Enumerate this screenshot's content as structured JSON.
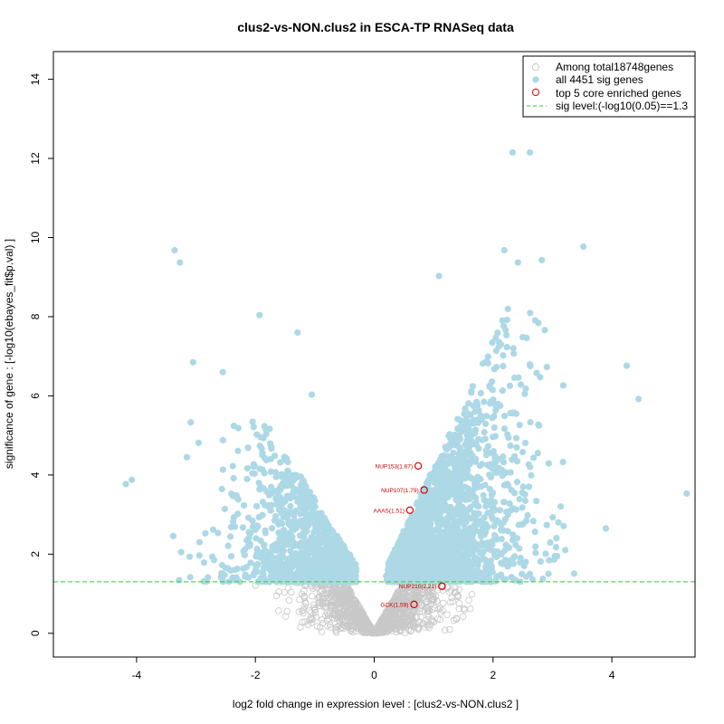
{
  "chart_data": {
    "type": "scatter",
    "title": "clus2-vs-NON.clus2 in ESCA-TP RNASeq data",
    "xlabel": "log2 fold change in expression level : [clus2-vs-NON.clus2 ]",
    "ylabel": "significance of gene : [-log10(ebayes_fit$p.val) ]",
    "xlim": [
      -5.4,
      5.4
    ],
    "ylim": [
      -0.6,
      14.7
    ],
    "x_ticks": [
      -4,
      -2,
      0,
      2,
      4
    ],
    "y_ticks": [
      0,
      2,
      4,
      6,
      8,
      10,
      12,
      14
    ],
    "grid": false,
    "legend_position": "top-right",
    "legend": [
      {
        "label": "Among total18748genes",
        "symbol": "open-circle",
        "color": "#c8c8c8"
      },
      {
        "label": "all 4451 sig genes",
        "symbol": "filled-circle",
        "color": "#add8e6"
      },
      {
        "label": "top 5 core enriched genes",
        "symbol": "open-circle",
        "color": "#dd0000"
      },
      {
        "label": "sig level:(-log10(0.05)==1.3",
        "symbol": "dashed-line",
        "color": "#33cc33"
      }
    ],
    "sig_level": 1.3,
    "colors": {
      "nonsig": "#c8c8c8",
      "sig": "#add8e6",
      "core": "#dd0000",
      "threshold": "#33cc33"
    },
    "highlight_points": [
      {
        "x": 1.09,
        "y": 9.03
      },
      {
        "x": 2.33,
        "y": 12.15
      },
      {
        "x": 2.62,
        "y": 12.15
      },
      {
        "x": 3.52,
        "y": 9.77
      },
      {
        "x": 5.26,
        "y": 3.53
      },
      {
        "x": -3.36,
        "y": 9.68
      },
      {
        "x": -3.27,
        "y": 9.37
      },
      {
        "x": -4.18,
        "y": 3.77
      },
      {
        "x": -4.08,
        "y": 3.88
      },
      {
        "x": -1.93,
        "y": 8.04
      },
      {
        "x": -3.05,
        "y": 6.85
      },
      {
        "x": -2.55,
        "y": 6.6
      },
      {
        "x": 2.19,
        "y": 9.68
      },
      {
        "x": 2.42,
        "y": 9.37
      },
      {
        "x": 2.82,
        "y": 9.43
      },
      {
        "x": 4.25,
        "y": 6.76
      },
      {
        "x": 4.45,
        "y": 5.92
      },
      {
        "x": 3.9,
        "y": 2.65
      },
      {
        "x": -1.05,
        "y": 6.03
      },
      {
        "x": -1.29,
        "y": 7.6
      }
    ],
    "core_genes": [
      {
        "label": "NUP153(1.67)",
        "x": 0.74,
        "y": 4.23
      },
      {
        "label": "NUP107(1.79)",
        "x": 0.84,
        "y": 3.62
      },
      {
        "label": "AAAS(1.51)",
        "x": 0.6,
        "y": 3.11
      },
      {
        "label": "NUP210(2.21)",
        "x": 1.14,
        "y": 1.19
      },
      {
        "label": "GCK(1.59)",
        "x": 0.67,
        "y": 0.73
      }
    ]
  }
}
